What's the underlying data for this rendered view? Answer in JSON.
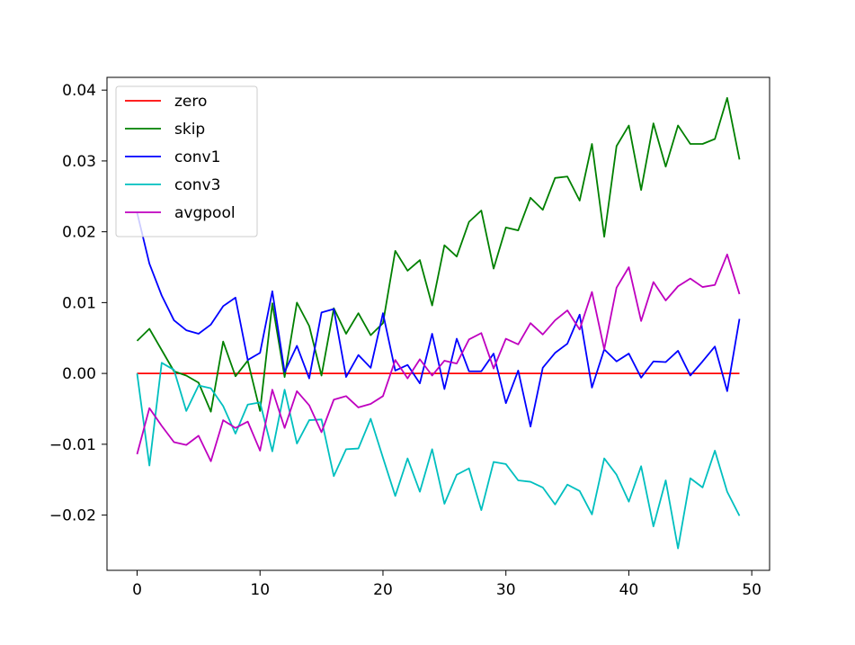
{
  "chart_data": {
    "type": "line",
    "title": "",
    "xlabel": "",
    "ylabel": "",
    "xlim": [
      -2.45,
      51.45
    ],
    "ylim": [
      -0.0278,
      0.0418
    ],
    "xticks": [
      0,
      10,
      20,
      30,
      40,
      50
    ],
    "xtick_labels": [
      "0",
      "10",
      "20",
      "30",
      "40",
      "50"
    ],
    "yticks": [
      -0.02,
      -0.01,
      0.0,
      0.01,
      0.02,
      0.03,
      0.04
    ],
    "ytick_labels": [
      "−0.02",
      "−0.01",
      "0.00",
      "0.01",
      "0.02",
      "0.03",
      "0.04"
    ],
    "grid": false,
    "legend": "upper left",
    "x": [
      0,
      1,
      2,
      3,
      4,
      5,
      6,
      7,
      8,
      9,
      10,
      11,
      12,
      13,
      14,
      15,
      16,
      17,
      18,
      19,
      20,
      21,
      22,
      23,
      24,
      25,
      26,
      27,
      28,
      29,
      30,
      31,
      32,
      33,
      34,
      35,
      36,
      37,
      38,
      39,
      40,
      41,
      42,
      43,
      44,
      45,
      46,
      47,
      48,
      49
    ],
    "series": [
      {
        "name": "zero",
        "color": "#ff0000",
        "values": [
          0,
          0,
          0,
          0,
          0,
          0,
          0,
          0,
          0,
          0,
          0,
          0,
          0,
          0,
          0,
          0,
          0,
          0,
          0,
          0,
          0,
          0,
          0,
          0,
          0,
          0,
          0,
          0,
          0,
          0,
          0,
          0,
          0,
          0,
          0,
          0,
          0,
          0,
          0,
          0,
          0,
          0,
          0,
          0,
          0,
          0,
          0,
          0,
          0,
          0
        ]
      },
      {
        "name": "skip",
        "color": "#008000",
        "values": [
          0.0046,
          0.0063,
          0.0033,
          0.0003,
          -0.0003,
          -0.0013,
          -0.0054,
          0.0045,
          -0.0004,
          0.0018,
          -0.0053,
          0.0099,
          -0.0005,
          0.01,
          0.0067,
          -0.0003,
          0.0092,
          0.0056,
          0.0085,
          0.0054,
          0.0071,
          0.0173,
          0.0145,
          0.016,
          0.0096,
          0.0181,
          0.0165,
          0.0214,
          0.023,
          0.0148,
          0.0206,
          0.0202,
          0.0248,
          0.0231,
          0.0276,
          0.0278,
          0.0244,
          0.0324,
          0.0193,
          0.0321,
          0.035,
          0.0259,
          0.0353,
          0.0292,
          0.035,
          0.0324,
          0.0324,
          0.0331,
          0.0389,
          0.0302
        ]
      },
      {
        "name": "conv1",
        "color": "#0000ff",
        "values": [
          0.0227,
          0.0155,
          0.011,
          0.0075,
          0.0061,
          0.0056,
          0.0069,
          0.0095,
          0.0107,
          0.0019,
          0.0029,
          0.0116,
          0.0002,
          0.0039,
          -0.0007,
          0.0086,
          0.0091,
          -0.0005,
          0.0026,
          0.0008,
          0.0085,
          0.0004,
          0.0012,
          -0.0014,
          0.0056,
          -0.0022,
          0.0049,
          0.0003,
          0.0003,
          0.0028,
          -0.0042,
          0.0004,
          -0.0075,
          0.0008,
          0.0029,
          0.0042,
          0.0083,
          -0.002,
          0.0034,
          0.0017,
          0.0028,
          -0.0006,
          0.0017,
          0.0016,
          0.0032,
          -0.0003,
          0.0017,
          0.0038,
          -0.0025,
          0.0077
        ]
      },
      {
        "name": "conv3",
        "color": "#00bfbf",
        "values": [
          0.0,
          -0.013,
          0.0015,
          0.0005,
          -0.0053,
          -0.0017,
          -0.0021,
          -0.0046,
          -0.0085,
          -0.0044,
          -0.0041,
          -0.011,
          -0.0023,
          -0.0099,
          -0.0066,
          -0.0065,
          -0.0145,
          -0.0107,
          -0.0106,
          -0.0064,
          -0.0119,
          -0.0173,
          -0.012,
          -0.0167,
          -0.0107,
          -0.0184,
          -0.0143,
          -0.0134,
          -0.0193,
          -0.0125,
          -0.0128,
          -0.0151,
          -0.0153,
          -0.0161,
          -0.0185,
          -0.0157,
          -0.0166,
          -0.0199,
          -0.012,
          -0.0143,
          -0.0181,
          -0.0131,
          -0.0216,
          -0.0151,
          -0.0247,
          -0.0148,
          -0.0161,
          -0.0109,
          -0.0167,
          -0.0201
        ]
      },
      {
        "name": "avgpool",
        "color": "#bf00bf",
        "values": [
          -0.0114,
          -0.0049,
          -0.0074,
          -0.0097,
          -0.0101,
          -0.0088,
          -0.0124,
          -0.0066,
          -0.0077,
          -0.0068,
          -0.0109,
          -0.0023,
          -0.0077,
          -0.0025,
          -0.0045,
          -0.0083,
          -0.0037,
          -0.0032,
          -0.0048,
          -0.0043,
          -0.0032,
          0.0019,
          -0.0007,
          0.002,
          -0.0003,
          0.0018,
          0.0014,
          0.0048,
          0.0057,
          0.0007,
          0.0049,
          0.0041,
          0.0071,
          0.0055,
          0.0075,
          0.0089,
          0.0062,
          0.0115,
          0.0034,
          0.0121,
          0.015,
          0.0074,
          0.0129,
          0.0103,
          0.0123,
          0.0134,
          0.0122,
          0.0125,
          0.0168,
          0.0112
        ]
      }
    ]
  }
}
